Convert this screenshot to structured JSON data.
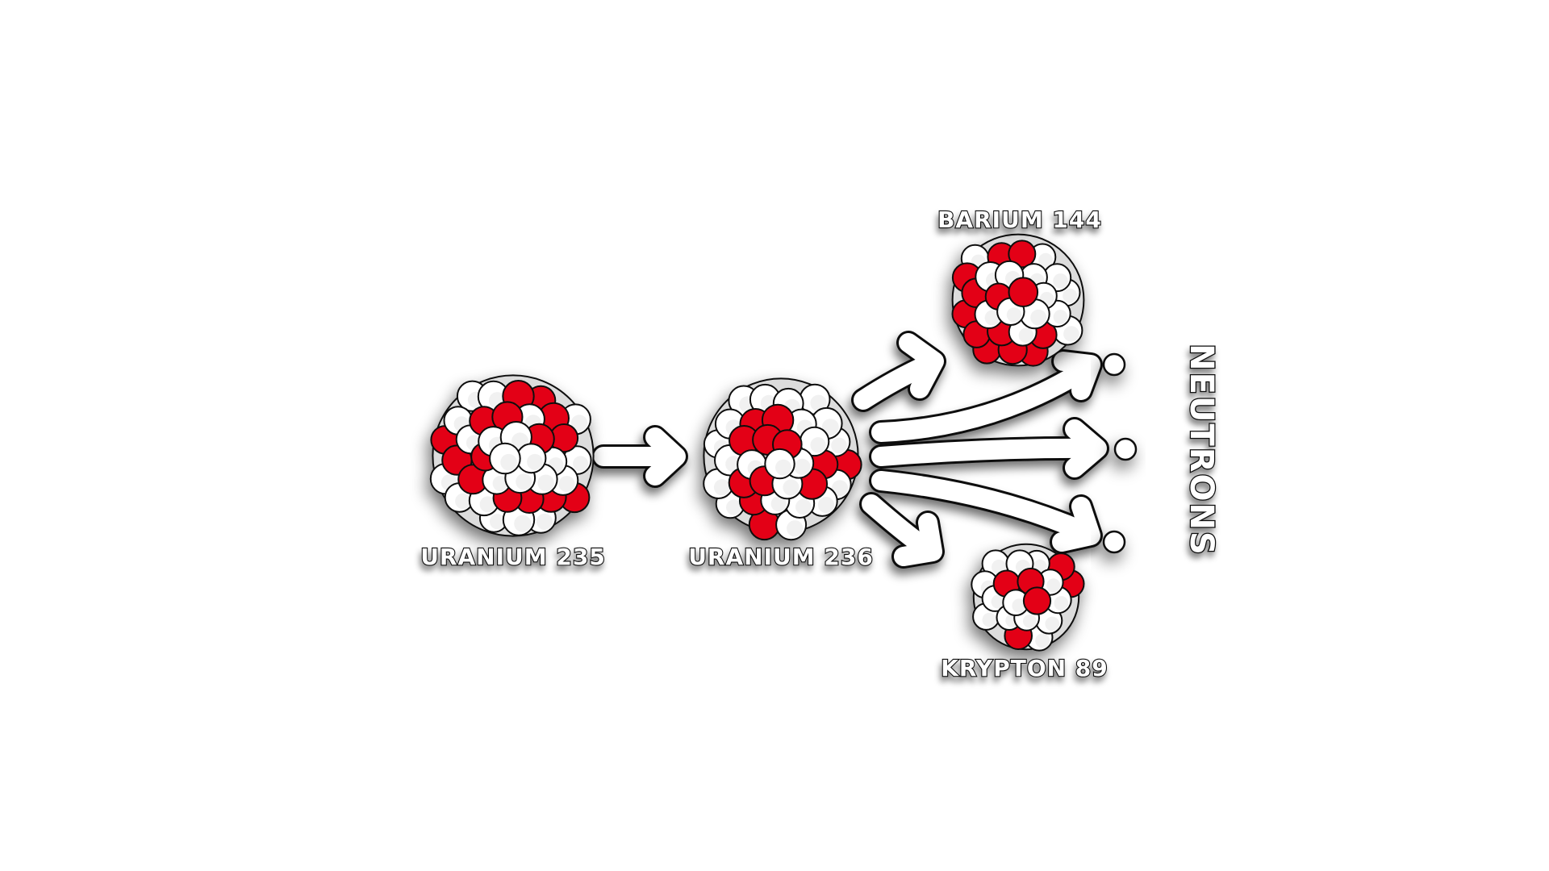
{
  "diagram": {
    "labels": {
      "uranium235": "URANIUM 235",
      "uranium236": "URANIUM 236",
      "barium": "BARIUM 144",
      "krypton": "KRYPTON 89",
      "neutrons": "NEUTRONS"
    },
    "nuclei": [
      {
        "id": "uranium-235",
        "label_key": "uranium235"
      },
      {
        "id": "uranium-236",
        "label_key": "uranium236"
      },
      {
        "id": "barium-144",
        "label_key": "barium"
      },
      {
        "id": "krypton-89",
        "label_key": "krypton"
      }
    ],
    "neutron_count": 3,
    "colors": {
      "proton": "#e30613",
      "neutron": "#ffffff",
      "outline": "#111111",
      "shadow": "#9a9a9a",
      "arrow": "#ffffff"
    }
  }
}
